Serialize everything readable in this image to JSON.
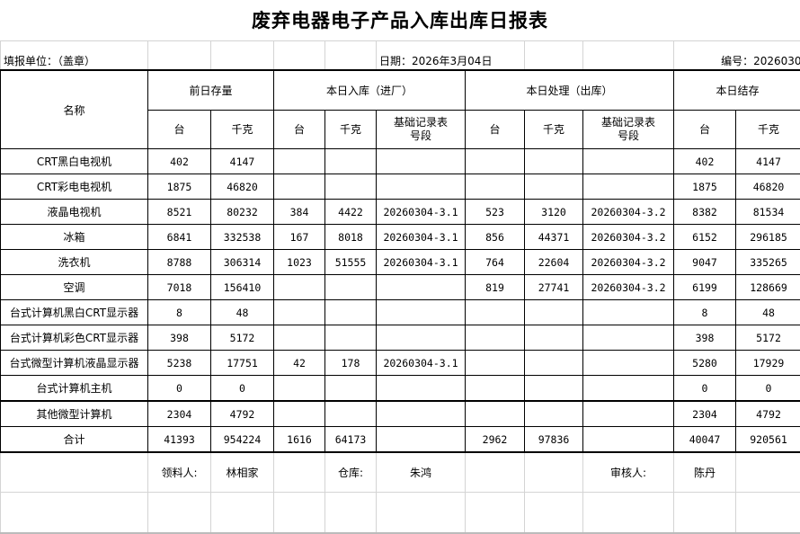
{
  "title": "废弃电器电子产品入库出库日报表",
  "info": {
    "unit_label": "填报单位：（盖章）",
    "date_label": "日期：2026年3月04日",
    "number_label": "编号：2026030"
  },
  "header": {
    "name": "名称",
    "prev_stock": "前日存量",
    "inbound": "本日入库（进厂）",
    "processed": "本日处理（出库）",
    "closing": "本日结存",
    "units": "台",
    "kg": "千克",
    "record_no": "基础记录表号段"
  },
  "rows": [
    {
      "name": "CRT黑白电视机",
      "prev_units": "402",
      "prev_kg": "4147",
      "in_units": "",
      "in_kg": "",
      "in_rec": "",
      "out_units": "",
      "out_kg": "",
      "out_rec": "",
      "end_units": "402",
      "end_kg": "4147"
    },
    {
      "name": "CRT彩电电视机",
      "prev_units": "1875",
      "prev_kg": "46820",
      "in_units": "",
      "in_kg": "",
      "in_rec": "",
      "out_units": "",
      "out_kg": "",
      "out_rec": "",
      "end_units": "1875",
      "end_kg": "46820"
    },
    {
      "name": "液晶电视机",
      "prev_units": "8521",
      "prev_kg": "80232",
      "in_units": "384",
      "in_kg": "4422",
      "in_rec": "20260304-3.1",
      "out_units": "523",
      "out_kg": "3120",
      "out_rec": "20260304-3.2",
      "end_units": "8382",
      "end_kg": "81534"
    },
    {
      "name": "冰箱",
      "prev_units": "6841",
      "prev_kg": "332538",
      "in_units": "167",
      "in_kg": "8018",
      "in_rec": "20260304-3.1",
      "out_units": "856",
      "out_kg": "44371",
      "out_rec": "20260304-3.2",
      "end_units": "6152",
      "end_kg": "296185"
    },
    {
      "name": "洗衣机",
      "prev_units": "8788",
      "prev_kg": "306314",
      "in_units": "1023",
      "in_kg": "51555",
      "in_rec": "20260304-3.1",
      "out_units": "764",
      "out_kg": "22604",
      "out_rec": "20260304-3.2",
      "end_units": "9047",
      "end_kg": "335265"
    },
    {
      "name": "空调",
      "prev_units": "7018",
      "prev_kg": "156410",
      "in_units": "",
      "in_kg": "",
      "in_rec": "",
      "out_units": "819",
      "out_kg": "27741",
      "out_rec": "20260304-3.2",
      "end_units": "6199",
      "end_kg": "128669"
    },
    {
      "name": "台式计算机黑白CRT显示器",
      "prev_units": "8",
      "prev_kg": "48",
      "in_units": "",
      "in_kg": "",
      "in_rec": "",
      "out_units": "",
      "out_kg": "",
      "out_rec": "",
      "end_units": "8",
      "end_kg": "48"
    },
    {
      "name": "台式计算机彩色CRT显示器",
      "prev_units": "398",
      "prev_kg": "5172",
      "in_units": "",
      "in_kg": "",
      "in_rec": "",
      "out_units": "",
      "out_kg": "",
      "out_rec": "",
      "end_units": "398",
      "end_kg": "5172"
    },
    {
      "name": "台式微型计算机液晶显示器",
      "prev_units": "5238",
      "prev_kg": "17751",
      "in_units": "42",
      "in_kg": "178",
      "in_rec": "20260304-3.1",
      "out_units": "",
      "out_kg": "",
      "out_rec": "",
      "end_units": "5280",
      "end_kg": "17929"
    },
    {
      "name": "台式计算机主机",
      "prev_units": "0",
      "prev_kg": "0",
      "in_units": "",
      "in_kg": "",
      "in_rec": "",
      "out_units": "",
      "out_kg": "",
      "out_rec": "",
      "end_units": "0",
      "end_kg": "0"
    },
    {
      "name": "其他微型计算机",
      "prev_units": "2304",
      "prev_kg": "4792",
      "in_units": "",
      "in_kg": "",
      "in_rec": "",
      "out_units": "",
      "out_kg": "",
      "out_rec": "",
      "end_units": "2304",
      "end_kg": "4792"
    },
    {
      "name": "合计",
      "prev_units": "41393",
      "prev_kg": "954224",
      "in_units": "1616",
      "in_kg": "64173",
      "in_rec": "",
      "out_units": "2962",
      "out_kg": "97836",
      "out_rec": "",
      "end_units": "40047",
      "end_kg": "920561"
    }
  ],
  "footer": {
    "receiver_label": "领料人:",
    "receiver": "林相家",
    "warehouse_label": "仓库:",
    "warehouse": "朱鸿",
    "reviewer_label": "审核人:",
    "reviewer": "陈丹"
  }
}
